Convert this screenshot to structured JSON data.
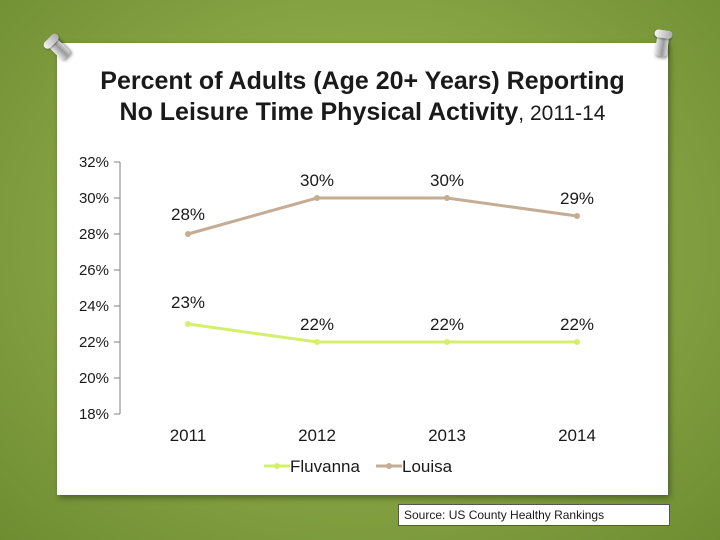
{
  "title": {
    "main": "Percent of Adults (Age 20+ Years) Reporting No Leisure Time Physical Activity",
    "years": ", 2011-14",
    "line1": "Percent of Adults (Age 20+ Years) Reporting",
    "line2": "No Leisure Time Physical Activity"
  },
  "source": "Source: US County Healthy Rankings",
  "colors": {
    "fluvanna": "#d4f06b",
    "louisa": "#c4ad94"
  },
  "chart_data": {
    "type": "line",
    "title": "Percent of Adults (Age 20+ Years) Reporting No Leisure Time Physical Activity, 2011-14",
    "categories": [
      "2011",
      "2012",
      "2013",
      "2014"
    ],
    "ylim": [
      18,
      32
    ],
    "yticks": [
      18,
      20,
      22,
      24,
      26,
      28,
      30,
      32
    ],
    "ytick_labels": [
      "18%",
      "20%",
      "22%",
      "24%",
      "26%",
      "28%",
      "30%",
      "32%"
    ],
    "series": [
      {
        "name": "Fluvanna",
        "values": [
          23,
          22,
          22,
          22
        ],
        "labels": [
          "23%",
          "22%",
          "22%",
          "22%"
        ]
      },
      {
        "name": "Louisa",
        "values": [
          28,
          30,
          30,
          29
        ],
        "labels": [
          "28%",
          "30%",
          "30%",
          "29%"
        ]
      }
    ],
    "legend": "bottom"
  }
}
